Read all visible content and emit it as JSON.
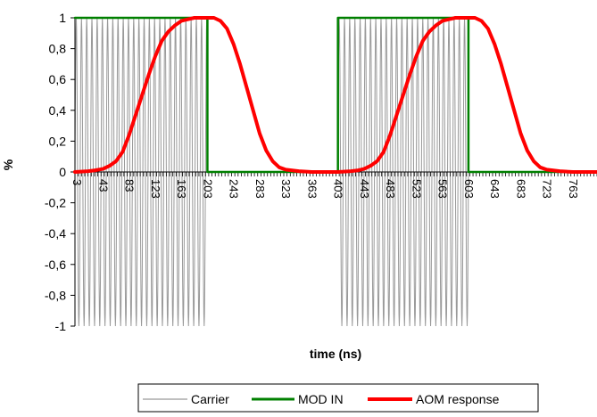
{
  "chart_data": {
    "type": "line",
    "title": "",
    "xlabel": "time (ns)",
    "ylabel": "%",
    "xlim": [
      0,
      800
    ],
    "ylim": [
      -1,
      1
    ],
    "yticks": [
      -1,
      -0.8,
      -0.6,
      -0.4,
      -0.2,
      0,
      0.2,
      0.4,
      0.6,
      0.8,
      1
    ],
    "ytick_labels": [
      "-1",
      "-0,8",
      "-0,6",
      "-0,4",
      "-0,2",
      "0",
      "0,2",
      "0,4",
      "0,6",
      "0,8",
      "1"
    ],
    "xtick_labels": [
      "3",
      "43",
      "83",
      "123",
      "163",
      "203",
      "243",
      "283",
      "323",
      "363",
      "403",
      "443",
      "483",
      "523",
      "563",
      "603",
      "643",
      "683",
      "723",
      "763"
    ],
    "grid": false,
    "legend_position": "bottom",
    "series": [
      {
        "name": "Carrier",
        "color": "#999999",
        "style": "sinusoid bursts of amplitude 1 and period ~8 ns, on only while MOD IN = 1",
        "amplitude": 1,
        "period_ns": 8,
        "on_intervals": [
          [
            0,
            203
          ],
          [
            403,
            603
          ]
        ]
      },
      {
        "name": "MOD IN",
        "color": "#008000",
        "x": [
          0,
          203,
          203,
          403,
          403,
          603,
          603,
          800
        ],
        "y": [
          1,
          1,
          0,
          0,
          1,
          1,
          0,
          0
        ]
      },
      {
        "name": "AOM response",
        "color": "#ff0000",
        "x": [
          0,
          20,
          30,
          43,
          53,
          63,
          73,
          83,
          93,
          103,
          113,
          123,
          133,
          143,
          153,
          163,
          173,
          183,
          203,
          213,
          223,
          233,
          243,
          253,
          263,
          273,
          283,
          293,
          303,
          313,
          323,
          333,
          343,
          363,
          383,
          403,
          423,
          433,
          443,
          453,
          463,
          473,
          483,
          493,
          503,
          513,
          523,
          533,
          543,
          553,
          563,
          573,
          583,
          603,
          613,
          623,
          633,
          643,
          653,
          663,
          673,
          683,
          693,
          703,
          713,
          723,
          733,
          743,
          763,
          800
        ],
        "y": [
          0,
          0.005,
          0.01,
          0.02,
          0.04,
          0.07,
          0.13,
          0.24,
          0.37,
          0.5,
          0.63,
          0.75,
          0.85,
          0.91,
          0.95,
          0.98,
          0.99,
          1,
          1,
          1,
          0.98,
          0.93,
          0.83,
          0.7,
          0.55,
          0.4,
          0.25,
          0.14,
          0.07,
          0.03,
          0.015,
          0.01,
          0.005,
          0,
          0,
          0,
          0.005,
          0.01,
          0.02,
          0.04,
          0.07,
          0.13,
          0.24,
          0.37,
          0.5,
          0.63,
          0.75,
          0.85,
          0.91,
          0.95,
          0.98,
          0.99,
          1,
          1,
          1,
          0.98,
          0.93,
          0.83,
          0.7,
          0.55,
          0.4,
          0.25,
          0.14,
          0.07,
          0.03,
          0.015,
          0.01,
          0.005,
          0,
          0
        ]
      }
    ]
  }
}
